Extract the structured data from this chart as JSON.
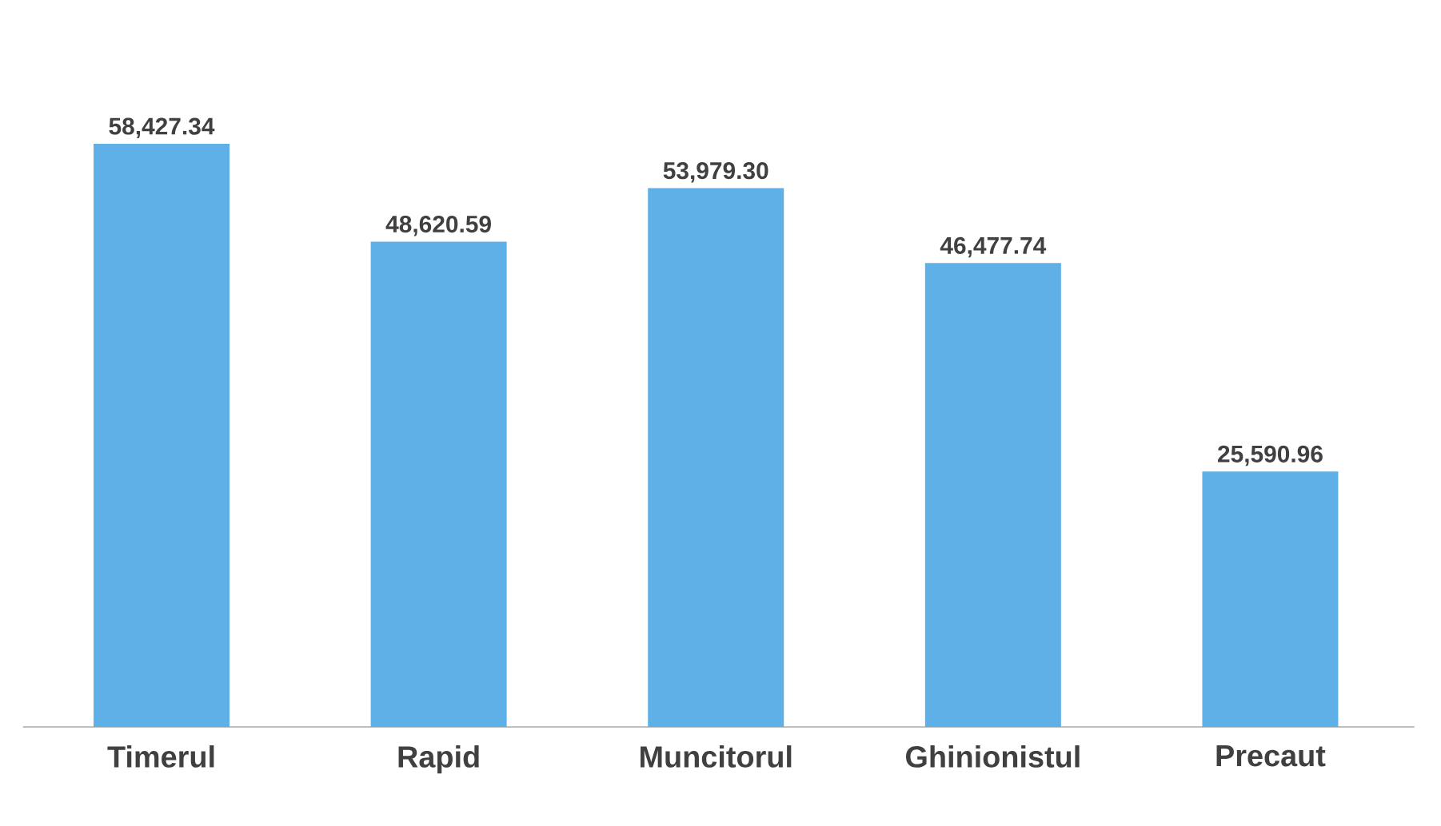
{
  "chart_data": {
    "type": "bar",
    "categories": [
      "Timerul",
      "Rapid",
      "Muncitorul",
      "Ghinionistul",
      "Precaut"
    ],
    "values": [
      58427.34,
      48620.59,
      53979.3,
      46477.74,
      25590.96
    ],
    "value_labels": [
      "58,427.34",
      "48,620.59",
      "53,979.30",
      "46,477.74",
      "25,590.96"
    ],
    "color": "#5eb0e6"
  }
}
